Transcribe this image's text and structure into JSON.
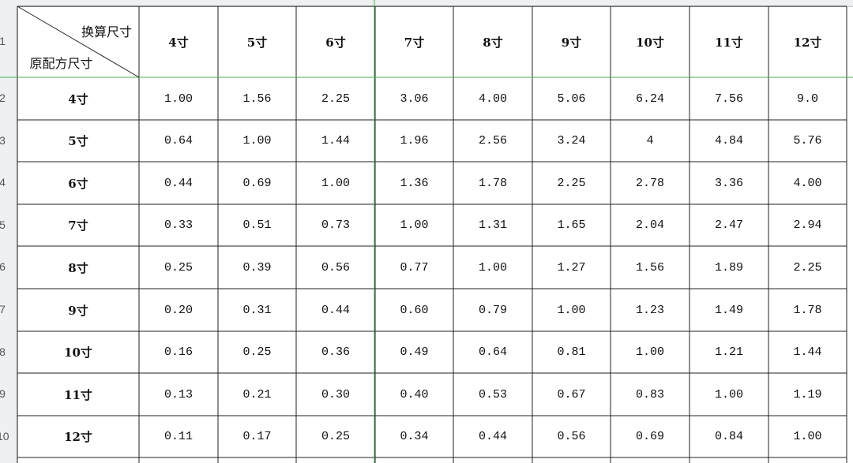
{
  "row_numbers": [
    "1",
    "2",
    "3",
    "4",
    "5",
    "6",
    "7",
    "8",
    "9",
    "10"
  ],
  "table": {
    "corner": {
      "top": "换算尺寸",
      "bottom": "原配方尺寸"
    },
    "header": [
      "4寸",
      "5寸",
      "6寸",
      "7寸",
      "8寸",
      "9寸",
      "10寸",
      "11寸",
      "12寸"
    ],
    "rows": [
      [
        "4寸",
        "1.00",
        "1.56",
        "2.25",
        "3.06",
        "4.00",
        "5.06",
        "6.24",
        "7.56",
        "9.0"
      ],
      [
        "5寸",
        "0.64",
        "1.00",
        "1.44",
        "1.96",
        "2.56",
        "3.24",
        "4",
        "4.84",
        "5.76"
      ],
      [
        "6寸",
        "0.44",
        "0.69",
        "1.00",
        "1.36",
        "1.78",
        "2.25",
        "2.78",
        "3.36",
        "4.00"
      ],
      [
        "7寸",
        "0.33",
        "0.51",
        "0.73",
        "1.00",
        "1.31",
        "1.65",
        "2.04",
        "2.47",
        "2.94"
      ],
      [
        "8寸",
        "0.25",
        "0.39",
        "0.56",
        "0.77",
        "1.00",
        "1.27",
        "1.56",
        "1.89",
        "2.25"
      ],
      [
        "9寸",
        "0.20",
        "0.31",
        "0.44",
        "0.60",
        "0.79",
        "1.00",
        "1.23",
        "1.49",
        "1.78"
      ],
      [
        "10寸",
        "0.16",
        "0.25",
        "0.36",
        "0.49",
        "0.64",
        "0.81",
        "1.00",
        "1.21",
        "1.44"
      ],
      [
        "11寸",
        "0.13",
        "0.21",
        "0.30",
        "0.40",
        "0.53",
        "0.67",
        "0.83",
        "1.00",
        "1.19"
      ],
      [
        "12寸",
        "0.11",
        "0.17",
        "0.25",
        "0.34",
        "0.44",
        "0.56",
        "0.69",
        "0.84",
        "1.00"
      ]
    ]
  }
}
